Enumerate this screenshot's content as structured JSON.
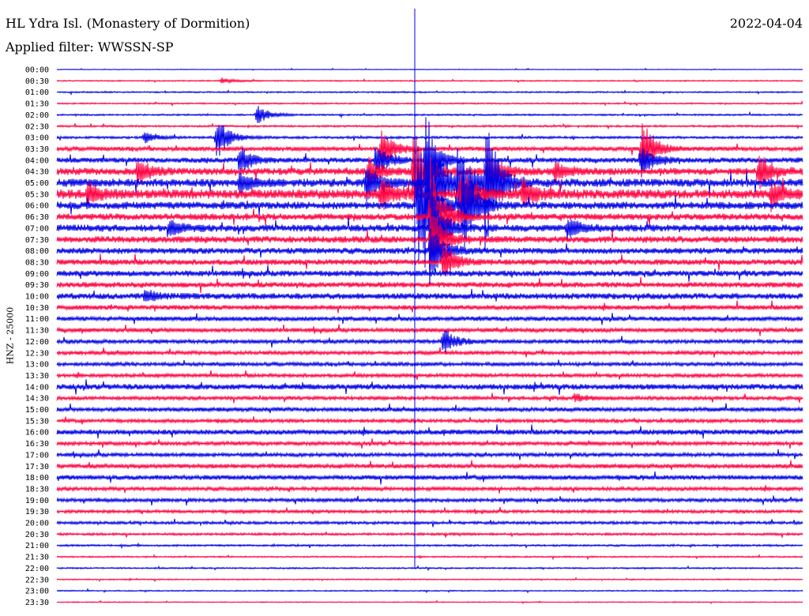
{
  "header": {
    "title": "HL Ydra Isl. (Monastery of Dormition)",
    "filter": "Applied filter: WWSSN-SP",
    "date": "2022-04-04"
  },
  "axis": {
    "side_label": "HNZ - 25000"
  },
  "chart_data": {
    "type": "line",
    "description_kind": "helicorder",
    "channel": "HNZ",
    "scale": 25000,
    "date": "2022-04-04",
    "row_labels": [
      "00:00",
      "00:30",
      "01:00",
      "01:30",
      "02:00",
      "02:30",
      "03:00",
      "03:30",
      "04:00",
      "04:30",
      "05:00",
      "05:30",
      "06:00",
      "06:30",
      "07:00",
      "07:30",
      "08:00",
      "08:30",
      "09:00",
      "09:30",
      "10:00",
      "10:30",
      "11:00",
      "11:30",
      "12:00",
      "12:30",
      "13:00",
      "13:30",
      "14:00",
      "14:30",
      "15:00",
      "15:30",
      "16:00",
      "16:30",
      "17:00",
      "17:30",
      "18:00",
      "18:30",
      "19:00",
      "19:30",
      "20:00",
      "20:30",
      "21:00",
      "21:30",
      "22:00",
      "22:30",
      "23:00",
      "23:30"
    ],
    "row_minutes": 30,
    "series_colors": [
      "#0000e6",
      "#ff0040"
    ],
    "noise_amplitude_by_row": [
      0.3,
      0.5,
      0.6,
      0.6,
      0.7,
      0.8,
      1.0,
      1.8,
      2.2,
      3.0,
      3.5,
      4.0,
      3.2,
      2.8,
      3.0,
      2.8,
      2.6,
      2.4,
      2.5,
      2.3,
      2.6,
      2.0,
      1.9,
      1.8,
      1.7,
      1.6,
      1.6,
      1.5,
      2.4,
      1.5,
      1.8,
      1.5,
      2.2,
      1.6,
      1.6,
      1.8,
      2.0,
      1.6,
      1.5,
      1.3,
      1.2,
      1.0,
      0.8,
      0.6,
      0.6,
      0.5,
      0.5,
      0.4
    ],
    "events": [
      {
        "row": 1,
        "minute": 6.6,
        "amplitude": 4
      },
      {
        "row": 4,
        "minute": 8.0,
        "amplitude": 14
      },
      {
        "row": 6,
        "minute": 3.5,
        "amplitude": 8
      },
      {
        "row": 6,
        "minute": 6.4,
        "amplitude": 30
      },
      {
        "row": 7,
        "minute": 13.0,
        "amplitude": 30
      },
      {
        "row": 7,
        "minute": 23.5,
        "amplitude": 40
      },
      {
        "row": 8,
        "minute": 7.3,
        "amplitude": 20
      },
      {
        "row": 8,
        "minute": 12.8,
        "amplitude": 25
      },
      {
        "row": 8,
        "minute": 14.8,
        "amplitude": 45
      },
      {
        "row": 8,
        "minute": 23.5,
        "amplitude": 20
      },
      {
        "row": 9,
        "minute": 3.2,
        "amplitude": 18
      },
      {
        "row": 9,
        "minute": 12.5,
        "amplitude": 20
      },
      {
        "row": 9,
        "minute": 14.3,
        "amplitude": 60
      },
      {
        "row": 9,
        "minute": 17.3,
        "amplitude": 35
      },
      {
        "row": 9,
        "minute": 20.0,
        "amplitude": 15
      },
      {
        "row": 9,
        "minute": 28.2,
        "amplitude": 25
      },
      {
        "row": 10,
        "minute": 7.3,
        "amplitude": 15
      },
      {
        "row": 10,
        "minute": 12.4,
        "amplitude": 25
      },
      {
        "row": 10,
        "minute": 14.8,
        "amplitude": 120
      },
      {
        "row": 10,
        "minute": 16.1,
        "amplitude": 60
      },
      {
        "row": 10,
        "minute": 17.2,
        "amplitude": 90
      },
      {
        "row": 11,
        "minute": 1.2,
        "amplitude": 15
      },
      {
        "row": 11,
        "minute": 13.0,
        "amplitude": 25
      },
      {
        "row": 11,
        "minute": 16.2,
        "amplitude": 45
      },
      {
        "row": 11,
        "minute": 18.7,
        "amplitude": 20
      },
      {
        "row": 11,
        "minute": 28.7,
        "amplitude": 18
      },
      {
        "row": 12,
        "minute": 14.5,
        "amplitude": 100
      },
      {
        "row": 12,
        "minute": 16.3,
        "amplitude": 70
      },
      {
        "row": 13,
        "minute": 15.0,
        "amplitude": 80
      },
      {
        "row": 14,
        "minute": 4.5,
        "amplitude": 12
      },
      {
        "row": 14,
        "minute": 15.0,
        "amplitude": 60
      },
      {
        "row": 14,
        "minute": 20.5,
        "amplitude": 15
      },
      {
        "row": 15,
        "minute": 15.0,
        "amplitude": 50
      },
      {
        "row": 16,
        "minute": 15.0,
        "amplitude": 40
      },
      {
        "row": 17,
        "minute": 15.5,
        "amplitude": 30
      },
      {
        "row": 20,
        "minute": 3.5,
        "amplitude": 8
      },
      {
        "row": 24,
        "minute": 15.5,
        "amplitude": 18
      },
      {
        "row": 29,
        "minute": 20.8,
        "amplitude": 6
      }
    ]
  }
}
